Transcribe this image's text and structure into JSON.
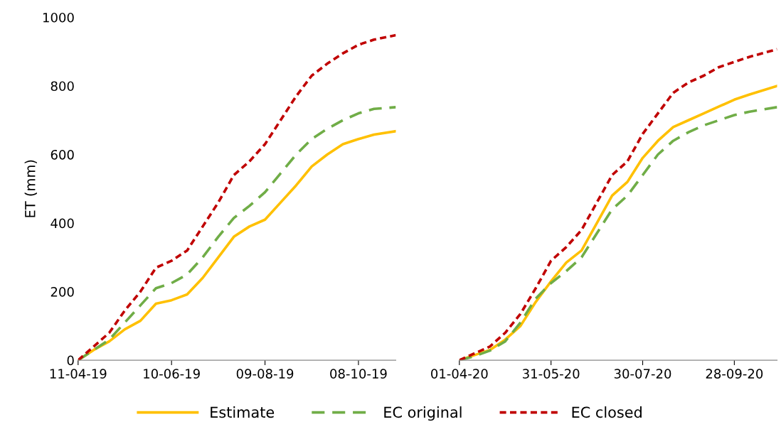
{
  "chart_data": [
    {
      "type": "line",
      "ylabel": "ET (mm)",
      "legend": "bottom",
      "grid": false,
      "x": [
        "2019-04-11",
        "2019-04-21",
        "2019-05-01",
        "2019-05-11",
        "2019-05-21",
        "2019-05-31",
        "2019-06-10",
        "2019-06-20",
        "2019-06-30",
        "2019-07-10",
        "2019-07-20",
        "2019-07-30",
        "2019-08-09",
        "2019-08-19",
        "2019-08-29",
        "2019-09-08",
        "2019-09-18",
        "2019-09-28",
        "2019-10-08",
        "2019-10-18",
        "2019-11-01"
      ],
      "xlim": [
        "2019-04-11",
        "2019-11-01"
      ],
      "xticks": [
        {
          "value": "2019-04-11",
          "label": "11-04-19"
        },
        {
          "value": "2019-06-10",
          "label": "10-06-19"
        },
        {
          "value": "2019-08-09",
          "label": "09-08-19"
        },
        {
          "value": "2019-10-08",
          "label": "08-10-19"
        }
      ],
      "ylim": [
        0,
        1000
      ],
      "yticks": [
        0,
        200,
        400,
        600,
        800,
        1000
      ],
      "series": [
        {
          "name": "Estimate",
          "color": "#ffc000",
          "line_style": "solid",
          "values": [
            0,
            30,
            55,
            90,
            115,
            165,
            175,
            192,
            240,
            300,
            360,
            390,
            410,
            460,
            510,
            565,
            600,
            630,
            645,
            658,
            668
          ]
        },
        {
          "name": "EC original",
          "color": "#70ad47",
          "line_style": "dashed",
          "values": [
            0,
            30,
            60,
            110,
            160,
            210,
            225,
            250,
            300,
            360,
            415,
            450,
            490,
            545,
            600,
            645,
            675,
            700,
            720,
            733,
            738
          ]
        },
        {
          "name": "EC closed",
          "color": "#c00000",
          "line_style": "dotted",
          "values": [
            0,
            40,
            80,
            145,
            200,
            270,
            290,
            320,
            390,
            460,
            540,
            580,
            630,
            700,
            770,
            830,
            865,
            895,
            920,
            935,
            948
          ]
        }
      ]
    },
    {
      "type": "line",
      "grid": false,
      "tick_labels": "x",
      "x": [
        "2020-04-01",
        "2020-04-11",
        "2020-04-21",
        "2020-05-01",
        "2020-05-11",
        "2020-05-21",
        "2020-05-31",
        "2020-06-10",
        "2020-06-20",
        "2020-06-30",
        "2020-07-10",
        "2020-07-20",
        "2020-07-30",
        "2020-08-09",
        "2020-08-19",
        "2020-08-29",
        "2020-09-08",
        "2020-09-18",
        "2020-09-28",
        "2020-10-08",
        "2020-10-26"
      ],
      "xlim": [
        "2020-04-01",
        "2020-10-26"
      ],
      "xticks": [
        {
          "value": "2020-04-01",
          "label": "01-04-20"
        },
        {
          "value": "2020-05-31",
          "label": "31-05-20"
        },
        {
          "value": "2020-07-30",
          "label": "30-07-20"
        },
        {
          "value": "2020-09-28",
          "label": "28-09-20"
        }
      ],
      "ylim": [
        0,
        1000
      ],
      "yticks": [
        0,
        200,
        400,
        600,
        800,
        1000
      ],
      "series": [
        {
          "color": "#ffc000",
          "line_style": "solid",
          "values": [
            0,
            15,
            30,
            60,
            100,
            170,
            230,
            285,
            320,
            400,
            480,
            520,
            590,
            640,
            680,
            700,
            720,
            740,
            760,
            775,
            800
          ]
        },
        {
          "color": "#70ad47",
          "line_style": "dashed",
          "values": [
            0,
            12,
            28,
            55,
            110,
            180,
            225,
            260,
            300,
            370,
            440,
            480,
            540,
            600,
            640,
            665,
            685,
            700,
            715,
            725,
            738
          ]
        },
        {
          "color": "#c00000",
          "line_style": "dotted",
          "values": [
            0,
            20,
            40,
            80,
            135,
            210,
            290,
            330,
            380,
            460,
            540,
            580,
            660,
            720,
            780,
            810,
            830,
            855,
            870,
            885,
            907
          ]
        }
      ]
    }
  ]
}
